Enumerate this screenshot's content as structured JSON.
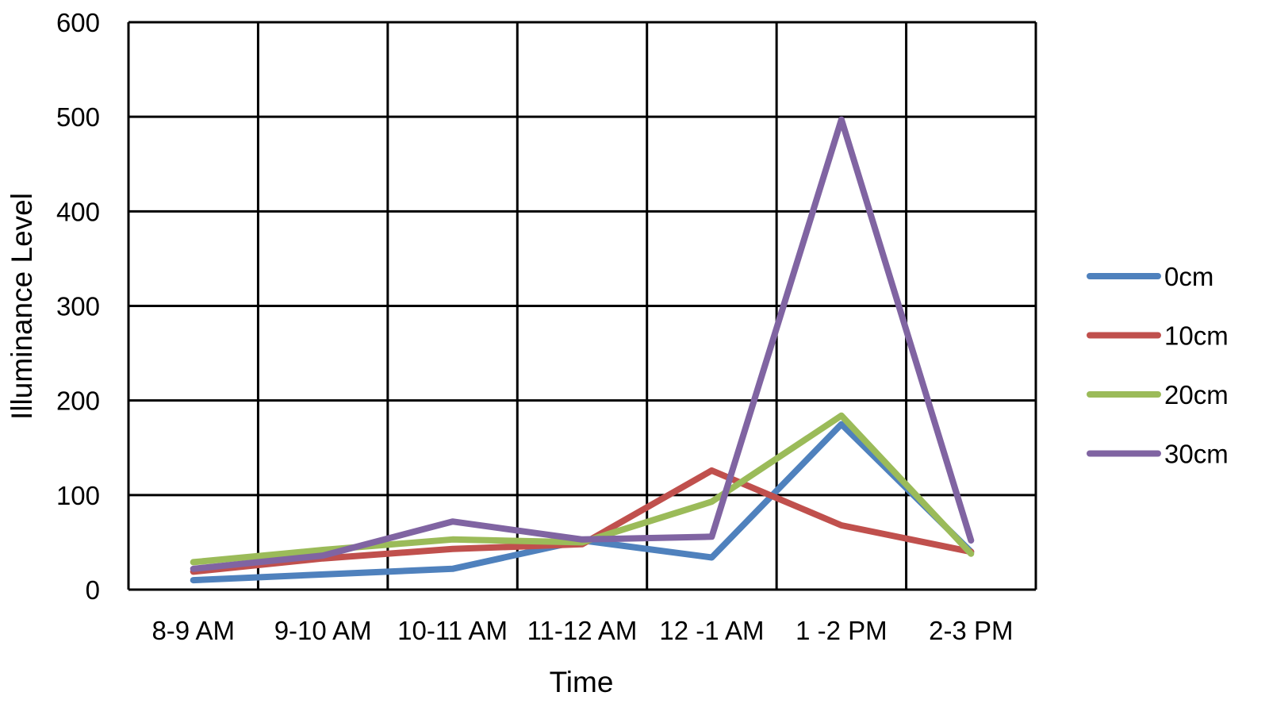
{
  "chart_data": {
    "type": "line",
    "title": "",
    "xlabel": "Time",
    "ylabel": "Illuminance Level",
    "categories": [
      "8-9 AM",
      "9-10 AM",
      "10-11 AM",
      "11-12 AM",
      "12 -1 AM",
      "1 -2 PM",
      "2-3 PM"
    ],
    "ylim": [
      0,
      600
    ],
    "yticks": [
      "0",
      "100",
      "200",
      "300",
      "400",
      "500",
      "600"
    ],
    "grid": true,
    "legend_position": "right",
    "series": [
      {
        "name": "0cm",
        "color": "#4f81bd",
        "values": [
          10,
          16,
          22,
          52,
          34,
          175,
          40
        ]
      },
      {
        "name": "10cm",
        "color": "#c0504d",
        "values": [
          19,
          33,
          43,
          48,
          126,
          68,
          40
        ]
      },
      {
        "name": "20cm",
        "color": "#9bbb59",
        "values": [
          29,
          42,
          53,
          50,
          93,
          184,
          38
        ]
      },
      {
        "name": "30cm",
        "color": "#8064a2",
        "values": [
          22,
          36,
          72,
          53,
          56,
          497,
          52
        ]
      }
    ]
  }
}
